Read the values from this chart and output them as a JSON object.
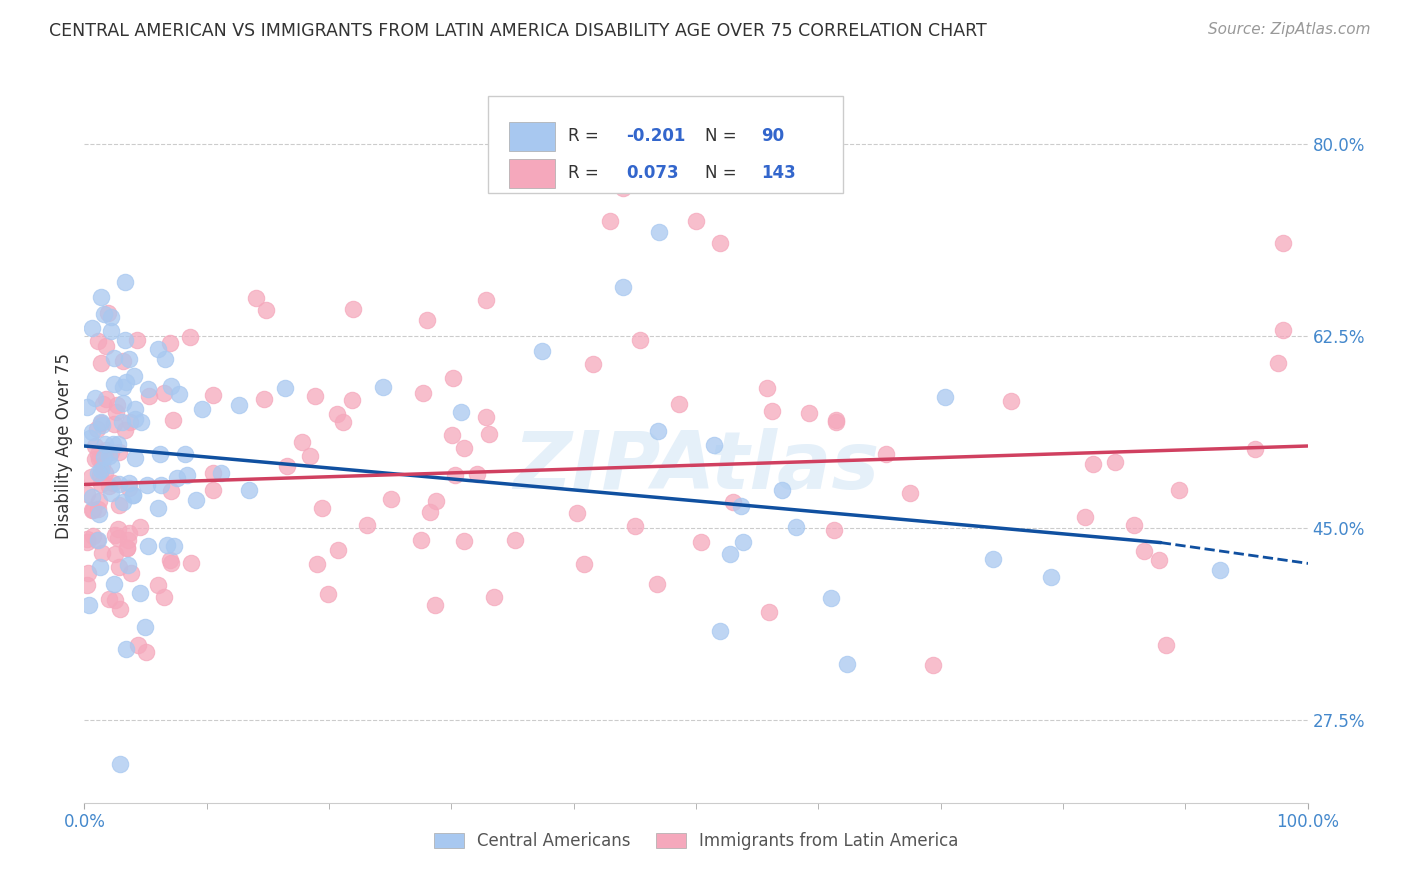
{
  "title": "CENTRAL AMERICAN VS IMMIGRANTS FROM LATIN AMERICA DISABILITY AGE OVER 75 CORRELATION CHART",
  "source": "Source: ZipAtlas.com",
  "ylabel": "Disability Age Over 75",
  "xlim": [
    0.0,
    1.0
  ],
  "ylim": [
    0.2,
    0.85
  ],
  "yticks": [
    0.275,
    0.45,
    0.625,
    0.8
  ],
  "ytick_labels": [
    "27.5%",
    "45.0%",
    "62.5%",
    "80.0%"
  ],
  "r_blue": -0.201,
  "n_blue": 90,
  "r_pink": 0.073,
  "n_pink": 143,
  "blue_color": "#A8C8F0",
  "pink_color": "#F5A8BC",
  "line_blue": "#1050A0",
  "line_pink": "#D04060",
  "axis_label_color": "#4488CC",
  "blue_line_start_y": 0.525,
  "blue_line_end_x": 0.88,
  "blue_line_end_y": 0.437,
  "blue_line_dash_end_x": 1.02,
  "blue_line_dash_end_y": 0.415,
  "pink_line_start_y": 0.49,
  "pink_line_end_y": 0.525
}
